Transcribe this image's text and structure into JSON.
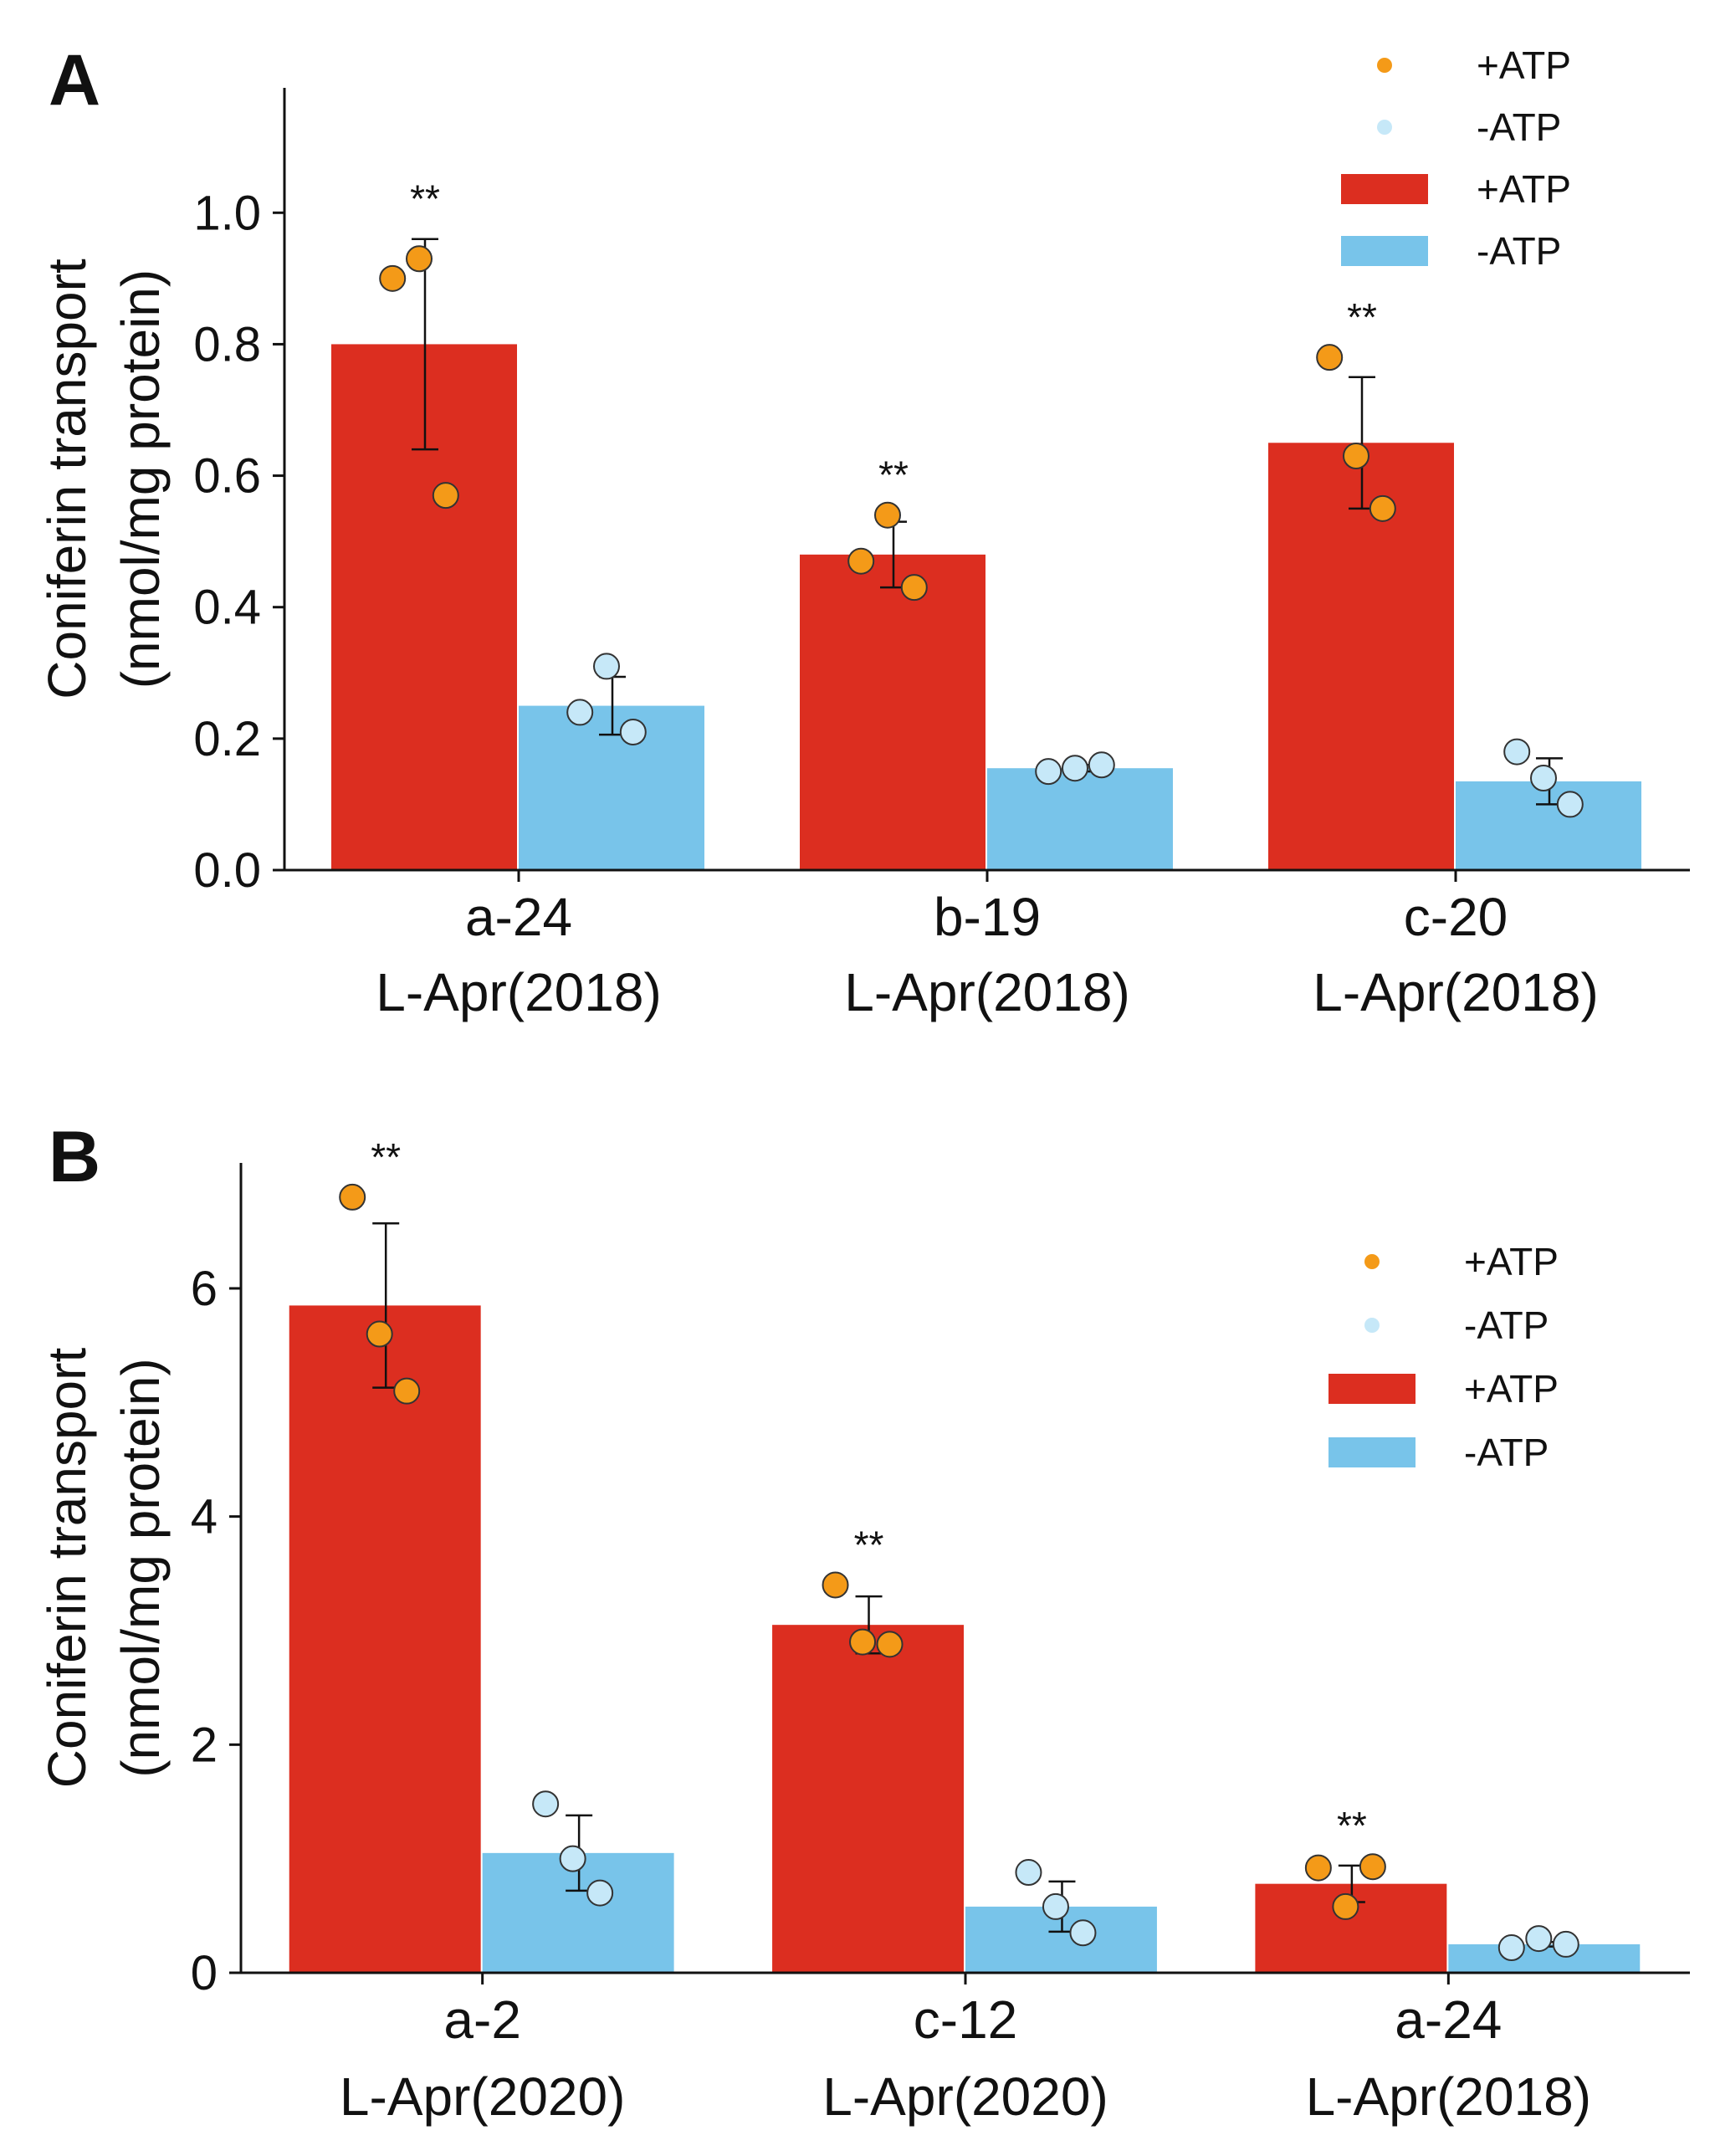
{
  "colors": {
    "plus_bar": "#DC2E20",
    "minus_bar": "#78C4EA",
    "plus_point": "#F49A18",
    "minus_point": "#C6E8F8",
    "axis": "#111111"
  },
  "chart_data": [
    {
      "type": "bar",
      "panel_label": "A",
      "ylabel_line1": "Coniferin transport",
      "ylabel_line2": "(nmol/mg protein)",
      "ylim": [
        0,
        1.19
      ],
      "yticks": [
        0.0,
        0.2,
        0.4,
        0.6,
        0.8,
        1.0
      ],
      "ytick_labels": [
        "0.0",
        "0.2",
        "0.4",
        "0.6",
        "0.8",
        "1.0"
      ],
      "categories": [
        {
          "line1": "a-24",
          "line2": "L-Apr(2018)"
        },
        {
          "line1": "b-19",
          "line2": "L-Apr(2018)"
        },
        {
          "line1": "c-20",
          "line2": "L-Apr(2018)"
        }
      ],
      "series": [
        {
          "name": "+ATP",
          "values": [
            0.8,
            0.48,
            0.65
          ],
          "errors": [
            0.16,
            0.05,
            0.1
          ],
          "points": [
            [
              0.9,
              0.93,
              0.57
            ],
            [
              0.47,
              0.54,
              0.43
            ],
            [
              0.78,
              0.63,
              0.55
            ]
          ]
        },
        {
          "name": "-ATP",
          "values": [
            0.25,
            0.155,
            0.135
          ],
          "errors": [
            0.044,
            0.005,
            0.035
          ],
          "points": [
            [
              0.24,
              0.31,
              0.21
            ],
            [
              0.15,
              0.155,
              0.16
            ],
            [
              0.18,
              0.14,
              0.1
            ]
          ]
        }
      ],
      "significance": [
        "**",
        "**",
        "**"
      ],
      "legend": {
        "placement": "top-right",
        "entries": [
          {
            "kind": "point",
            "series": "+ATP",
            "label": "+ATP"
          },
          {
            "kind": "point",
            "series": "-ATP",
            "label": "-ATP"
          },
          {
            "kind": "bar",
            "series": "+ATP",
            "label": "+ATP"
          },
          {
            "kind": "bar",
            "series": "-ATP",
            "label": "-ATP"
          }
        ]
      }
    },
    {
      "type": "bar",
      "panel_label": "B",
      "ylabel_line1": "Coniferin transport",
      "ylabel_line2": "(nmol/mg protein)",
      "ylim": [
        0,
        7.1
      ],
      "yticks": [
        0,
        2,
        4,
        6
      ],
      "ytick_labels": [
        "0",
        "2",
        "4",
        "6"
      ],
      "categories": [
        {
          "line1": "a-2",
          "line2": "L-Apr(2020)"
        },
        {
          "line1": "c-12",
          "line2": "L-Apr(2020)"
        },
        {
          "line1": "a-24",
          "line2": "L-Apr(2018)"
        }
      ],
      "series": [
        {
          "name": "+ATP",
          "values": [
            5.85,
            3.05,
            0.78
          ],
          "errors": [
            0.72,
            0.25,
            0.16
          ],
          "points": [
            [
              6.8,
              5.6,
              5.1
            ],
            [
              3.4,
              2.9,
              2.88
            ],
            [
              0.92,
              0.58,
              0.93
            ]
          ]
        },
        {
          "name": "-ATP",
          "values": [
            1.05,
            0.58,
            0.25
          ],
          "errors": [
            0.33,
            0.22,
            0.02
          ],
          "points": [
            [
              1.48,
              1.0,
              0.7
            ],
            [
              0.88,
              0.58,
              0.35
            ],
            [
              0.22,
              0.3,
              0.25
            ]
          ]
        }
      ],
      "significance": [
        "**",
        "**",
        "**"
      ],
      "legend": {
        "placement": "top-right",
        "entries": [
          {
            "kind": "point",
            "series": "+ATP",
            "label": "+ATP"
          },
          {
            "kind": "point",
            "series": "-ATP",
            "label": "-ATP"
          },
          {
            "kind": "bar",
            "series": "+ATP",
            "label": "+ATP"
          },
          {
            "kind": "bar",
            "series": "-ATP",
            "label": "-ATP"
          }
        ]
      }
    }
  ]
}
